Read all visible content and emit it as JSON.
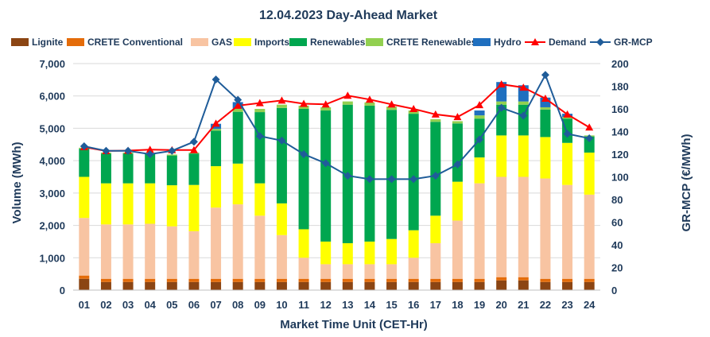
{
  "chart_data": {
    "type": "bar",
    "title": "12.04.2023  Day-Ahead Market",
    "xlabel": "Market Time Unit (CET-Hr)",
    "ylabel": "Volume (MWh)",
    "y2label": "GR-MCP (€/MWh)",
    "ylim": [
      0,
      7000
    ],
    "y2lim": [
      0,
      200
    ],
    "y_ticks": [
      "0",
      "1,000",
      "2,000",
      "3,000",
      "4,000",
      "5,000",
      "6,000",
      "7,000"
    ],
    "y2_ticks": [
      "0",
      "20",
      "40",
      "60",
      "80",
      "100",
      "120",
      "140",
      "160",
      "180",
      "200"
    ],
    "grid": true,
    "legend_position": "top",
    "categories": [
      "01",
      "02",
      "03",
      "04",
      "05",
      "06",
      "07",
      "08",
      "09",
      "10",
      "11",
      "12",
      "13",
      "14",
      "15",
      "16",
      "17",
      "18",
      "19",
      "20",
      "21",
      "22",
      "23",
      "24"
    ],
    "stacked_series": [
      {
        "name": "Lignite",
        "color": "#8B4513",
        "values": [
          350,
          250,
          250,
          250,
          250,
          250,
          250,
          250,
          250,
          250,
          250,
          250,
          250,
          250,
          250,
          250,
          250,
          250,
          250,
          300,
          300,
          250,
          250,
          250
        ]
      },
      {
        "name": "CRETE Conventional",
        "color": "#E46C0A",
        "values": [
          100,
          100,
          100,
          100,
          100,
          100,
          100,
          100,
          100,
          100,
          100,
          100,
          100,
          100,
          100,
          100,
          100,
          100,
          100,
          100,
          100,
          100,
          100,
          100
        ]
      },
      {
        "name": "GAS",
        "color": "#F8C4A2",
        "values": [
          1780,
          1680,
          1680,
          1700,
          1620,
          1470,
          2200,
          2300,
          1950,
          1350,
          650,
          450,
          450,
          450,
          450,
          650,
          1100,
          1800,
          2950,
          3100,
          3100,
          3100,
          2900,
          2600
        ]
      },
      {
        "name": "Imports",
        "color": "#FFFF00",
        "values": [
          1270,
          1270,
          1270,
          1250,
          1270,
          1430,
          1280,
          1260,
          1000,
          980,
          880,
          700,
          650,
          700,
          780,
          850,
          850,
          1200,
          800,
          1280,
          1280,
          1280,
          1300,
          1300
        ]
      },
      {
        "name": "Renewables",
        "color": "#00A64F",
        "values": [
          870,
          920,
          920,
          900,
          920,
          970,
          1100,
          1600,
          2200,
          2950,
          3720,
          4050,
          4280,
          4200,
          3990,
          3600,
          2900,
          1800,
          1200,
          950,
          950,
          850,
          750,
          500
        ]
      },
      {
        "name": "CRETE Renewables",
        "color": "#92D050",
        "values": [
          30,
          30,
          30,
          30,
          30,
          30,
          50,
          100,
          100,
          100,
          100,
          100,
          100,
          100,
          100,
          100,
          80,
          70,
          100,
          100,
          100,
          70,
          50,
          30
        ]
      },
      {
        "name": "Hydro",
        "color": "#1F6FBF",
        "values": [
          0,
          0,
          0,
          0,
          0,
          0,
          160,
          200,
          0,
          0,
          0,
          0,
          0,
          0,
          0,
          0,
          0,
          0,
          150,
          600,
          500,
          300,
          100,
          0
        ]
      }
    ],
    "line_series": [
      {
        "name": "Demand",
        "axis": "primary",
        "color": "#FF0000",
        "marker": "triangle",
        "values": [
          4420,
          4300,
          4310,
          4340,
          4330,
          4330,
          5150,
          5700,
          5780,
          5860,
          5760,
          5740,
          6010,
          5890,
          5740,
          5600,
          5430,
          5350,
          5720,
          6360,
          6260,
          5920,
          5430,
          5030
        ]
      },
      {
        "name": "GR-MCP",
        "axis": "secondary",
        "color": "#1F5C99",
        "marker": "diamond",
        "values": [
          127,
          123,
          123,
          120,
          123,
          131,
          186,
          168,
          136,
          132,
          120,
          112,
          101,
          98,
          98,
          98,
          101,
          111,
          133,
          161,
          154,
          190,
          138,
          134
        ]
      }
    ]
  }
}
